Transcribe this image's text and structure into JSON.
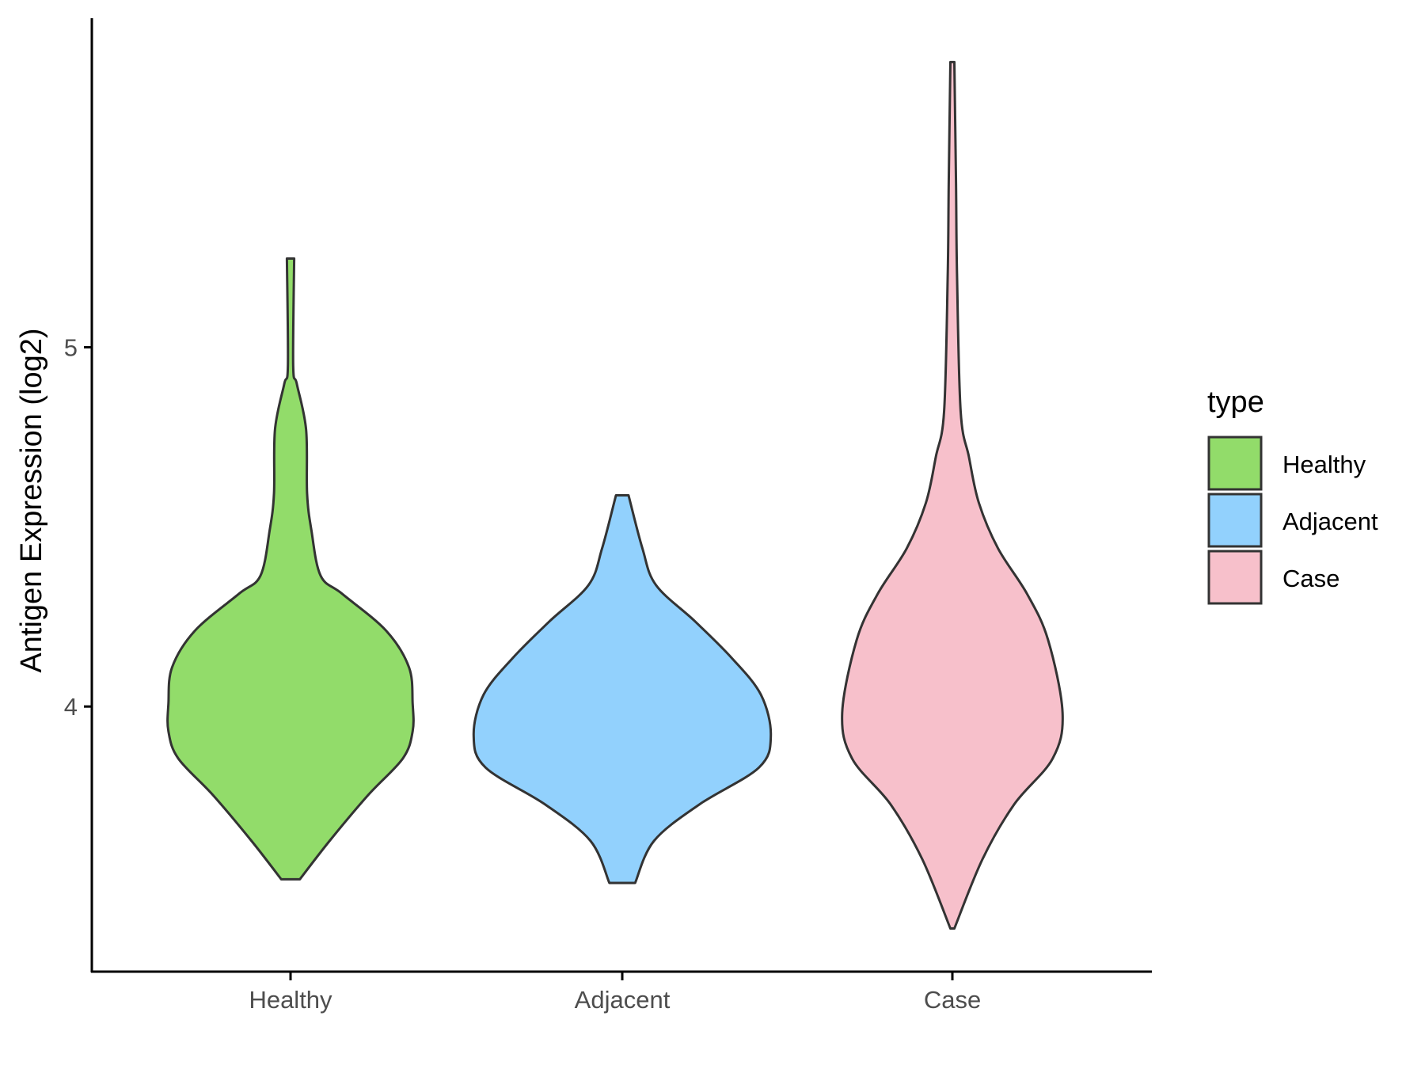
{
  "chart_data": {
    "type": "violin",
    "title": "",
    "xlabel": "",
    "ylabel": "Antigen Expression (log2)",
    "ylim": [
      3.262,
      5.916
    ],
    "yticks": [
      4,
      5
    ],
    "ytick_labels": [
      "4",
      "5"
    ],
    "categories": [
      "Healthy",
      "Adjacent",
      "Case"
    ],
    "legend": {
      "title": "type",
      "position": "right",
      "entries": [
        "Healthy",
        "Adjacent",
        "Case"
      ]
    },
    "colors": {
      "Healthy": "#92DC6A",
      "Adjacent": "#92D1FD",
      "Case": "#F7C0CB",
      "outline": "#333333"
    },
    "series": [
      {
        "name": "Healthy",
        "profile_note": "value, half-width (fraction of category spacing)",
        "profile": [
          [
            5.247,
            0.011
          ],
          [
            4.949,
            0.008
          ],
          [
            4.898,
            0.019
          ],
          [
            4.771,
            0.047
          ],
          [
            4.593,
            0.05
          ],
          [
            4.491,
            0.063
          ],
          [
            4.364,
            0.091
          ],
          [
            4.313,
            0.157
          ],
          [
            4.211,
            0.289
          ],
          [
            4.109,
            0.358
          ],
          [
            4.008,
            0.369
          ],
          [
            3.931,
            0.369
          ],
          [
            3.855,
            0.339
          ],
          [
            3.753,
            0.234
          ],
          [
            3.626,
            0.118
          ],
          [
            3.519,
            0.028
          ]
        ]
      },
      {
        "name": "Adjacent",
        "profile": [
          [
            4.588,
            0.019
          ],
          [
            4.44,
            0.061
          ],
          [
            4.338,
            0.102
          ],
          [
            4.237,
            0.22
          ],
          [
            4.135,
            0.331
          ],
          [
            4.033,
            0.419
          ],
          [
            3.919,
            0.449
          ],
          [
            3.83,
            0.413
          ],
          [
            3.728,
            0.234
          ],
          [
            3.626,
            0.096
          ],
          [
            3.509,
            0.039
          ]
        ]
      },
      {
        "name": "Case",
        "profile": [
          [
            5.794,
            0.006
          ],
          [
            5.458,
            0.011
          ],
          [
            5.204,
            0.014
          ],
          [
            4.822,
            0.025
          ],
          [
            4.695,
            0.05
          ],
          [
            4.567,
            0.08
          ],
          [
            4.44,
            0.138
          ],
          [
            4.313,
            0.226
          ],
          [
            4.186,
            0.289
          ],
          [
            3.982,
            0.333
          ],
          [
            3.855,
            0.303
          ],
          [
            3.728,
            0.187
          ],
          [
            3.575,
            0.091
          ],
          [
            3.382,
            0.006
          ]
        ]
      }
    ]
  }
}
